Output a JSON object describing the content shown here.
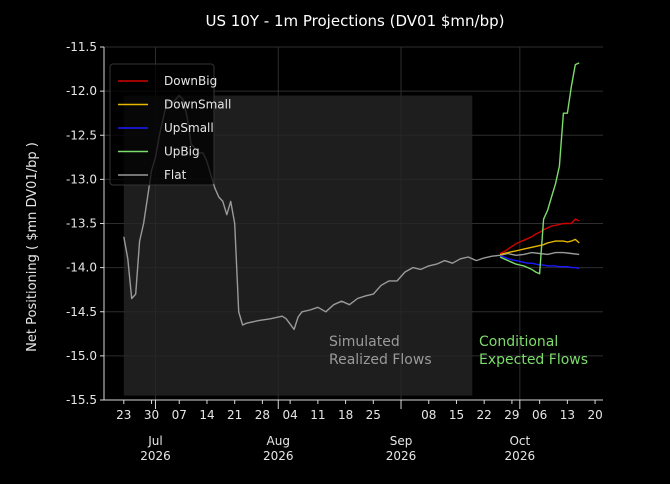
{
  "chart_data": {
    "type": "line",
    "title": "US 10Y - 1m Projections (DV01 $mn/bp)",
    "ylabel": "Net Positioning ( $mn DV01/bp )",
    "xlabel": "",
    "ylim": [
      -15.5,
      -11.5
    ],
    "yticks": [
      "-15.5",
      "-15.0",
      "-14.5",
      "-14.0",
      "-13.5",
      "-13.0",
      "-12.5",
      "-12.0",
      "-11.5"
    ],
    "xlim": [
      "2026-06-18",
      "2026-10-22"
    ],
    "xticks": [
      {
        "date": "2026-06-23",
        "label": "23"
      },
      {
        "date": "2026-06-30",
        "label": "30"
      },
      {
        "date": "2026-07-07",
        "label": "07"
      },
      {
        "date": "2026-07-14",
        "label": "14"
      },
      {
        "date": "2026-07-21",
        "label": "21"
      },
      {
        "date": "2026-07-28",
        "label": "28"
      },
      {
        "date": "2026-08-04",
        "label": "04"
      },
      {
        "date": "2026-08-11",
        "label": "11"
      },
      {
        "date": "2026-08-18",
        "label": "18"
      },
      {
        "date": "2026-08-25",
        "label": "25"
      },
      {
        "date": "2026-09-08",
        "label": "08"
      },
      {
        "date": "2026-09-15",
        "label": "15"
      },
      {
        "date": "2026-09-22",
        "label": "22"
      },
      {
        "date": "2026-09-29",
        "label": "29"
      },
      {
        "date": "2026-10-06",
        "label": "06"
      },
      {
        "date": "2026-10-13",
        "label": "13"
      },
      {
        "date": "2026-10-20",
        "label": "20"
      }
    ],
    "month_labels": [
      {
        "date": "2026-07-01",
        "month": "Jul",
        "year": "2026"
      },
      {
        "date": "2026-08-01",
        "month": "Aug",
        "year": "2026"
      },
      {
        "date": "2026-09-01",
        "month": "Sep",
        "year": "2026"
      },
      {
        "date": "2026-10-01",
        "month": "Oct",
        "year": "2026"
      }
    ],
    "grid": true,
    "legend_position": "top-left",
    "background": "#000000",
    "shaded_region": {
      "x_start": "2026-06-23",
      "x_end": "2026-09-19",
      "y_low": -15.45,
      "y_high": -12.05
    },
    "annotations": [
      {
        "text": [
          "Simulated",
          "Realized Flows"
        ],
        "color": "#9a9a9a"
      },
      {
        "text": [
          "Conditional",
          "Expected Flows"
        ],
        "color": "#7ddc6b"
      }
    ],
    "series": [
      {
        "name": "DownBig",
        "color": "#d40000",
        "x": [
          "2026-09-26",
          "2026-09-27",
          "2026-09-28",
          "2026-09-29",
          "2026-09-30",
          "2026-10-01",
          "2026-10-02",
          "2026-10-03",
          "2026-10-04",
          "2026-10-05",
          "2026-10-06",
          "2026-10-07",
          "2026-10-08",
          "2026-10-09",
          "2026-10-10",
          "2026-10-11",
          "2026-10-12",
          "2026-10-13",
          "2026-10-14",
          "2026-10-15",
          "2026-10-16"
        ],
        "values": [
          -13.84,
          -13.82,
          -13.79,
          -13.76,
          -13.73,
          -13.71,
          -13.69,
          -13.67,
          -13.65,
          -13.62,
          -13.6,
          -13.57,
          -13.55,
          -13.53,
          -13.52,
          -13.51,
          -13.5,
          -13.5,
          -13.5,
          -13.45,
          -13.47
        ]
      },
      {
        "name": "DownSmall",
        "color": "#e6b800",
        "x": [
          "2026-09-26",
          "2026-09-27",
          "2026-09-28",
          "2026-09-29",
          "2026-09-30",
          "2026-10-01",
          "2026-10-02",
          "2026-10-03",
          "2026-10-04",
          "2026-10-05",
          "2026-10-06",
          "2026-10-07",
          "2026-10-08",
          "2026-10-09",
          "2026-10-10",
          "2026-10-11",
          "2026-10-12",
          "2026-10-13",
          "2026-10-14",
          "2026-10-15",
          "2026-10-16"
        ],
        "values": [
          -13.85,
          -13.84,
          -13.83,
          -13.82,
          -13.81,
          -13.8,
          -13.79,
          -13.78,
          -13.77,
          -13.76,
          -13.75,
          -13.74,
          -13.72,
          -13.71,
          -13.7,
          -13.7,
          -13.7,
          -13.71,
          -13.7,
          -13.68,
          -13.72
        ]
      },
      {
        "name": "UpSmall",
        "color": "#1a1aff",
        "x": [
          "2026-09-26",
          "2026-09-27",
          "2026-09-28",
          "2026-09-29",
          "2026-09-30",
          "2026-10-01",
          "2026-10-02",
          "2026-10-03",
          "2026-10-04",
          "2026-10-05",
          "2026-10-06",
          "2026-10-07",
          "2026-10-08",
          "2026-10-09",
          "2026-10-10",
          "2026-10-11",
          "2026-10-12",
          "2026-10-13",
          "2026-10-14",
          "2026-10-15",
          "2026-10-16"
        ],
        "values": [
          -13.87,
          -13.88,
          -13.9,
          -13.91,
          -13.92,
          -13.93,
          -13.94,
          -13.95,
          -13.95,
          -13.96,
          -13.97,
          -13.97,
          -13.98,
          -13.98,
          -13.98,
          -13.99,
          -13.99,
          -13.99,
          -14.0,
          -14.0,
          -14.01
        ]
      },
      {
        "name": "UpBig",
        "color": "#7ddc6b",
        "x": [
          "2026-09-26",
          "2026-09-27",
          "2026-09-28",
          "2026-09-29",
          "2026-09-30",
          "2026-10-01",
          "2026-10-02",
          "2026-10-03",
          "2026-10-04",
          "2026-10-05",
          "2026-10-06",
          "2026-10-07",
          "2026-10-08",
          "2026-10-09",
          "2026-10-10",
          "2026-10-11",
          "2026-10-12",
          "2026-10-13",
          "2026-10-14",
          "2026-10-15",
          "2026-10-16"
        ],
        "values": [
          -13.88,
          -13.9,
          -13.92,
          -13.94,
          -13.96,
          -13.97,
          -13.98,
          -14.0,
          -14.02,
          -14.05,
          -14.07,
          -13.45,
          -13.35,
          -13.2,
          -13.05,
          -12.85,
          -12.25,
          -12.25,
          -11.95,
          -11.7,
          -11.68
        ]
      },
      {
        "name": "Flat",
        "color": "#9a9a9a",
        "x": [
          "2026-06-23",
          "2026-06-24",
          "2026-06-25",
          "2026-06-26",
          "2026-06-27",
          "2026-06-28",
          "2026-06-29",
          "2026-06-30",
          "2026-07-01",
          "2026-07-02",
          "2026-07-03",
          "2026-07-04",
          "2026-07-05",
          "2026-07-06",
          "2026-07-07",
          "2026-07-08",
          "2026-07-09",
          "2026-07-10",
          "2026-07-11",
          "2026-07-12",
          "2026-07-13",
          "2026-07-14",
          "2026-07-15",
          "2026-07-16",
          "2026-07-17",
          "2026-07-18",
          "2026-07-19",
          "2026-07-20",
          "2026-07-21",
          "2026-07-22",
          "2026-07-23",
          "2026-07-24",
          "2026-07-27",
          "2026-07-30",
          "2026-08-02",
          "2026-08-03",
          "2026-08-05",
          "2026-08-06",
          "2026-08-07",
          "2026-08-09",
          "2026-08-11",
          "2026-08-13",
          "2026-08-15",
          "2026-08-17",
          "2026-08-19",
          "2026-08-21",
          "2026-08-23",
          "2026-08-25",
          "2026-08-27",
          "2026-08-29",
          "2026-08-31",
          "2026-09-02",
          "2026-09-04",
          "2026-09-06",
          "2026-09-08",
          "2026-09-10",
          "2026-09-12",
          "2026-09-14",
          "2026-09-16",
          "2026-09-18",
          "2026-09-20",
          "2026-09-22",
          "2026-09-24",
          "2026-09-26",
          "2026-09-28",
          "2026-09-30",
          "2026-10-02",
          "2026-10-04",
          "2026-10-06",
          "2026-10-08",
          "2026-10-10",
          "2026-10-12",
          "2026-10-14",
          "2026-10-16"
        ],
        "values": [
          -13.65,
          -13.9,
          -14.35,
          -14.3,
          -13.7,
          -13.5,
          -13.2,
          -12.9,
          -12.75,
          -12.5,
          -12.3,
          -12.1,
          -12.15,
          -12.1,
          -12.05,
          -12.1,
          -12.3,
          -12.6,
          -12.65,
          -12.7,
          -12.7,
          -12.8,
          -12.95,
          -13.1,
          -13.2,
          -13.25,
          -13.4,
          -13.25,
          -13.5,
          -14.5,
          -14.65,
          -14.63,
          -14.6,
          -14.58,
          -14.55,
          -14.58,
          -14.7,
          -14.56,
          -14.5,
          -14.48,
          -14.45,
          -14.5,
          -14.42,
          -14.38,
          -14.42,
          -14.35,
          -14.32,
          -14.3,
          -14.2,
          -14.15,
          -14.15,
          -14.05,
          -14.0,
          -14.02,
          -13.98,
          -13.96,
          -13.92,
          -13.95,
          -13.9,
          -13.88,
          -13.92,
          -13.89,
          -13.87,
          -13.86,
          -13.84,
          -13.86,
          -13.85,
          -13.83,
          -13.84,
          -13.85,
          -13.83,
          -13.83,
          -13.84,
          -13.85
        ]
      }
    ]
  }
}
